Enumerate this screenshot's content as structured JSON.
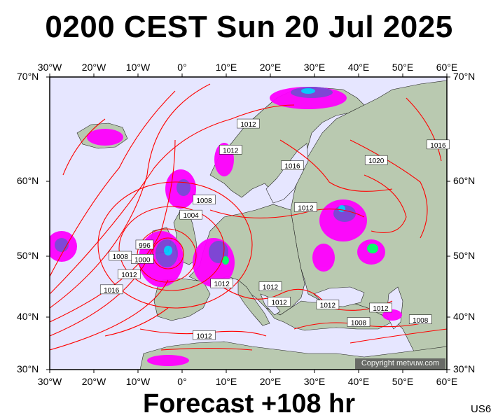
{
  "title": "0200 CEST Sun 20 Jul 2025",
  "footer": "Forecast +108 hr",
  "model": "US6",
  "copyright": "Copyright metvuw.com",
  "colors": {
    "land": "#b9c9b0",
    "sea": "#e6e6ff",
    "isobar": "#ff0000",
    "rain_light": "#ff00ff",
    "rain_mid": "#7b3fd6",
    "rain_heavy": "#00c8ff",
    "rain_extreme": "#00ff66"
  },
  "axes": {
    "lon_labels": [
      "30°W",
      "20°W",
      "10°W",
      "0°",
      "10°E",
      "20°E",
      "30°E",
      "40°E",
      "50°E",
      "60°E"
    ],
    "lat_labels": [
      "70°N",
      "60°N",
      "50°N",
      "40°N",
      "30°N"
    ]
  },
  "isobar_labels": [
    {
      "text": "1012",
      "lon": 15,
      "lat": 65.5
    },
    {
      "text": "1012",
      "lon": 11,
      "lat": 63
    },
    {
      "text": "1016",
      "lon": 25,
      "lat": 61.5
    },
    {
      "text": "1020",
      "lon": 44,
      "lat": 62
    },
    {
      "text": "1016",
      "lon": 58,
      "lat": 63.5
    },
    {
      "text": "1008",
      "lon": 5,
      "lat": 57.5
    },
    {
      "text": "1004",
      "lon": 2,
      "lat": 55.5
    },
    {
      "text": "1012",
      "lon": 28,
      "lat": 56.5
    },
    {
      "text": "996",
      "lon": -8.5,
      "lat": 51.5
    },
    {
      "text": "1000",
      "lon": -9,
      "lat": 49.5
    },
    {
      "text": "1008",
      "lon": -14,
      "lat": 50
    },
    {
      "text": "1012",
      "lon": -12,
      "lat": 47
    },
    {
      "text": "1016",
      "lon": -16,
      "lat": 44.5
    },
    {
      "text": "1012",
      "lon": 9,
      "lat": 45.5
    },
    {
      "text": "1012",
      "lon": 20,
      "lat": 45
    },
    {
      "text": "1012",
      "lon": 22,
      "lat": 42.5
    },
    {
      "text": "1012",
      "lon": 33,
      "lat": 42
    },
    {
      "text": "1012",
      "lon": 45,
      "lat": 41.5
    },
    {
      "text": "1008",
      "lon": 40,
      "lat": 39
    },
    {
      "text": "1008",
      "lon": 54,
      "lat": 39.5
    },
    {
      "text": "1012",
      "lon": 5,
      "lat": 36.5
    }
  ]
}
